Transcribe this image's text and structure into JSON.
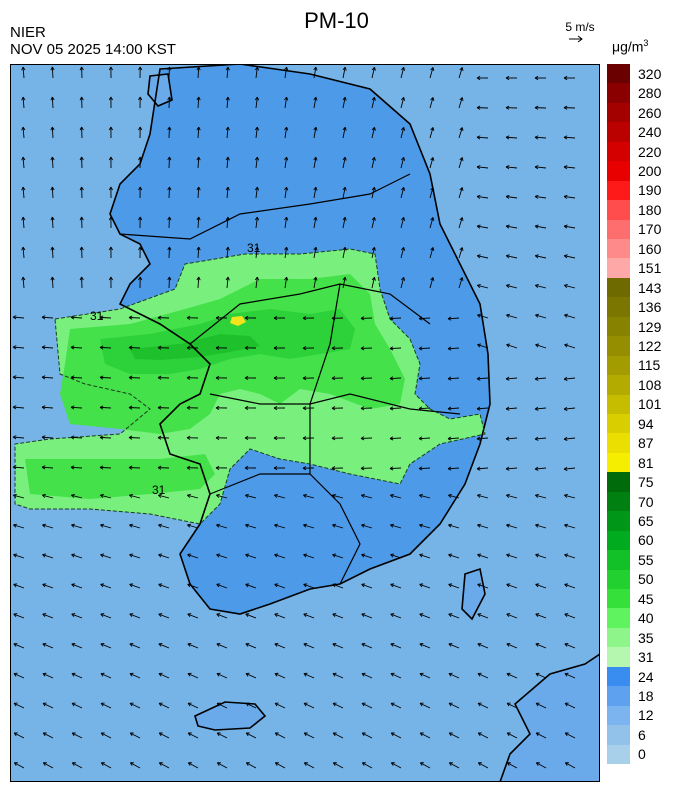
{
  "header": {
    "agency": "NIER",
    "timestamp": "NOV 05 2025 14:00 KST",
    "title": "PM-10",
    "wind_reference": "5 m/s",
    "unit_prefix": "μg/m",
    "unit_exponent": "3"
  },
  "map": {
    "contour_label": "31",
    "colors": {
      "sea_background": "#76b3e6",
      "land_base": "#4d9ae8",
      "level_35": "#79f07e",
      "level_40": "#44e14a",
      "level_45": "#2dd13a",
      "level_50": "#1ec12b",
      "level_81": "#f2e41c",
      "island": "#6aa9ea"
    },
    "icons": [
      "wind-vector-arrow",
      "coastline-outline"
    ]
  },
  "legend": {
    "bins": [
      {
        "label": "320",
        "color": "#6b0000"
      },
      {
        "label": "280",
        "color": "#8a0000"
      },
      {
        "label": "260",
        "color": "#a30000"
      },
      {
        "label": "240",
        "color": "#bb0000"
      },
      {
        "label": "220",
        "color": "#d40000"
      },
      {
        "label": "200",
        "color": "#e80000"
      },
      {
        "label": "190",
        "color": "#ff1a1a"
      },
      {
        "label": "180",
        "color": "#ff4d4d"
      },
      {
        "label": "170",
        "color": "#ff6e6e"
      },
      {
        "label": "160",
        "color": "#ff8a8a"
      },
      {
        "label": "151",
        "color": "#ffa8a8"
      },
      {
        "label": "143",
        "color": "#6e6a00"
      },
      {
        "label": "136",
        "color": "#7a7600"
      },
      {
        "label": "129",
        "color": "#878200"
      },
      {
        "label": "122",
        "color": "#948e00"
      },
      {
        "label": "115",
        "color": "#a39c00"
      },
      {
        "label": "108",
        "color": "#b4ab00"
      },
      {
        "label": "101",
        "color": "#c6bd00"
      },
      {
        "label": "94",
        "color": "#d8ce00"
      },
      {
        "label": "87",
        "color": "#eadf00"
      },
      {
        "label": "81",
        "color": "#f5ee00"
      },
      {
        "label": "75",
        "color": "#006b0a"
      },
      {
        "label": "70",
        "color": "#008010"
      },
      {
        "label": "65",
        "color": "#009617"
      },
      {
        "label": "60",
        "color": "#00ab1f"
      },
      {
        "label": "55",
        "color": "#12c127"
      },
      {
        "label": "50",
        "color": "#22d130"
      },
      {
        "label": "45",
        "color": "#36e03a"
      },
      {
        "label": "40",
        "color": "#5ff35f"
      },
      {
        "label": "35",
        "color": "#8ef58b"
      },
      {
        "label": "31",
        "color": "#b6f7b0"
      },
      {
        "label": "24",
        "color": "#3a8df0"
      },
      {
        "label": "18",
        "color": "#5ea2ef"
      },
      {
        "label": "12",
        "color": "#7bb4ee"
      },
      {
        "label": "6",
        "color": "#92c2ea"
      },
      {
        "label": "0",
        "color": "#a8d0ea"
      }
    ]
  }
}
